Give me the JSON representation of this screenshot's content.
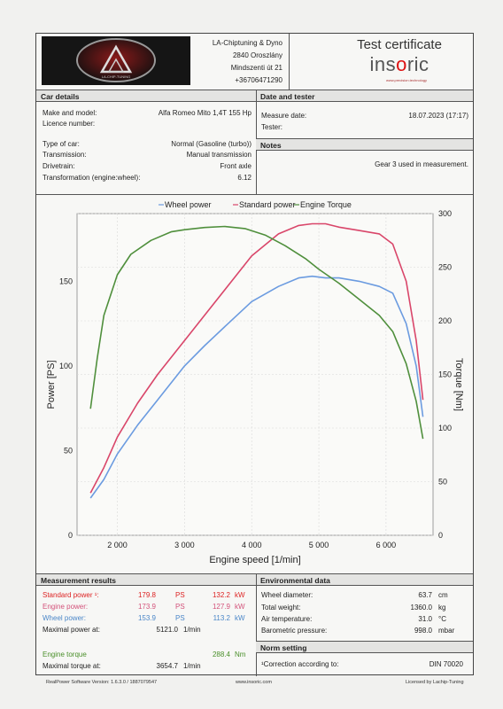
{
  "company": {
    "name": "LA-Chiptuning & Dyno",
    "zip_city": "2840 Oroszlány",
    "street": "Mindszenti út 21",
    "phone": "+36706471290"
  },
  "brand": {
    "title": "Test certificate",
    "logo_pre": "ins",
    "logo_o": "o",
    "logo_post": "ric",
    "tagline": "www.precision.technology"
  },
  "logo_caption": "LA-CHIP-TUNING",
  "car": {
    "header": "Car details",
    "make_label": "Make and model:",
    "make_value": "Alfa Romeo Mito 1,4T 155 Hp",
    "licence_label": "Licence number:",
    "licence_value": "",
    "type_label": "Type of car:",
    "type_value": "Normal (Gasoline (turbo))",
    "trans_label": "Transmission:",
    "trans_value": "Manual transmission",
    "drive_label": "Drivetrain:",
    "drive_value": "Front axle",
    "ratio_label": "Transformation (engine:wheel):",
    "ratio_value": "6.12"
  },
  "date": {
    "header": "Date and tester",
    "measure_label": "Measure date:",
    "measure_value": "18.07.2023 (17:17)",
    "tester_label": "Tester:",
    "tester_value": ""
  },
  "notes": {
    "header": "Notes",
    "text": "Gear 3 used in measurement."
  },
  "results": {
    "header": "Measurement results",
    "std_label": "Standard power ¹:",
    "std_ps": "179.8",
    "std_ps_u": "PS",
    "std_kw": "132.2",
    "std_kw_u": "kW",
    "eng_label": "Engine power:",
    "eng_ps": "173.9",
    "eng_ps_u": "PS",
    "eng_kw": "127.9",
    "eng_kw_u": "kW",
    "wheel_label": "Wheel power:",
    "wheel_ps": "153.9",
    "wheel_ps_u": "PS",
    "wheel_kw": "113.2",
    "wheel_kw_u": "kW",
    "maxp_label": "Maximal power at:",
    "maxp_value": "5121.0",
    "maxp_u": "1/min",
    "torque_label": "Engine torque",
    "torque_value": "288.4",
    "torque_u": "Nm",
    "maxt_label": "Maximal torque at:",
    "maxt_value": "3654.7",
    "maxt_u": "1/min"
  },
  "env": {
    "header": "Environmental data",
    "wheel_d_label": "Wheel diameter:",
    "wheel_d_value": "63.7",
    "wheel_d_u": "cm",
    "weight_label": "Total weight:",
    "weight_value": "1360.0",
    "weight_u": "kg",
    "air_label": "Air temperature:",
    "air_value": "31.0",
    "air_u": "°C",
    "baro_label": "Barometric pressure:",
    "baro_value": "998.0",
    "baro_u": "mbar"
  },
  "norm": {
    "header": "Norm setting",
    "label": "¹Correction according to:",
    "value": "DIN 70020"
  },
  "footer": {
    "left": "RealPower Software Version: 1.6.3.0 / 1887079547",
    "center": "www.insoric.com",
    "right": "Licensed by Lachip-Tuning"
  },
  "chart_data": {
    "type": "line",
    "xlabel": "Engine speed [1/min]",
    "ylabel": "Power [PS]",
    "y2label": "Torque [Nm]",
    "xlim": [
      1400,
      6700
    ],
    "ylim": [
      0,
      190
    ],
    "y2lim": [
      0,
      300
    ],
    "xticks": [
      2000,
      3000,
      4000,
      5000,
      6000
    ],
    "xtick_labels": [
      "2 000",
      "3 000",
      "4 000",
      "5 000",
      "6 000"
    ],
    "yticks": [
      0,
      50,
      100,
      150
    ],
    "y2ticks": [
      0,
      50,
      100,
      150,
      200,
      250,
      300
    ],
    "legend_position": "top",
    "grid": true,
    "series": [
      {
        "name": "Wheel power",
        "color": "#6b9be0",
        "axis": "left",
        "x": [
          1600,
          1800,
          2000,
          2300,
          2600,
          3000,
          3300,
          3700,
          4000,
          4400,
          4700,
          4900,
          5100,
          5300,
          5600,
          5900,
          6100,
          6300,
          6450,
          6550
        ],
        "y": [
          22,
          33,
          48,
          65,
          80,
          100,
          112,
          127,
          138,
          147,
          152,
          153,
          152,
          152,
          150,
          147,
          143,
          125,
          100,
          70
        ]
      },
      {
        "name": "Standard power",
        "color": "#d9466a",
        "axis": "left",
        "x": [
          1600,
          1800,
          2000,
          2300,
          2600,
          3000,
          3300,
          3700,
          4000,
          4400,
          4700,
          4900,
          5100,
          5300,
          5600,
          5900,
          6100,
          6300,
          6450,
          6550
        ],
        "y": [
          25,
          40,
          58,
          78,
          95,
          115,
          130,
          150,
          165,
          178,
          183,
          184,
          184,
          182,
          180,
          178,
          172,
          150,
          115,
          80
        ]
      },
      {
        "name": "Engine Torque",
        "color": "#4f8f3c",
        "axis": "right",
        "x": [
          1600,
          1700,
          1800,
          2000,
          2200,
          2500,
          2800,
          3000,
          3300,
          3600,
          3900,
          4200,
          4500,
          4800,
          5000,
          5300,
          5600,
          5900,
          6100,
          6300,
          6450,
          6550
        ],
        "y": [
          118,
          165,
          205,
          243,
          262,
          275,
          283,
          285,
          287,
          288,
          286,
          280,
          270,
          258,
          248,
          235,
          220,
          205,
          190,
          160,
          125,
          90
        ]
      }
    ]
  }
}
